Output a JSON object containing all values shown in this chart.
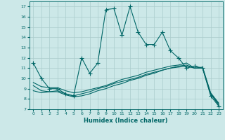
{
  "xlabel": "Humidex (Indice chaleur)",
  "bg_color": "#cce8e8",
  "line_color": "#006666",
  "grid_color": "#aacccc",
  "xlim": [
    -0.5,
    23.5
  ],
  "ylim": [
    7,
    17.5
  ],
  "yticks": [
    7,
    8,
    9,
    10,
    11,
    12,
    13,
    14,
    15,
    16,
    17
  ],
  "xticks": [
    0,
    1,
    2,
    3,
    4,
    5,
    6,
    7,
    8,
    9,
    10,
    11,
    12,
    13,
    14,
    15,
    16,
    17,
    18,
    19,
    20,
    21,
    22,
    23
  ],
  "series1_x": [
    0,
    1,
    2,
    3,
    4,
    5,
    6,
    7,
    8,
    9,
    10,
    11,
    12,
    13,
    14,
    15,
    16,
    17,
    18,
    19,
    20,
    21,
    22,
    23
  ],
  "series1_y": [
    11.5,
    10.0,
    9.0,
    9.0,
    8.5,
    8.3,
    12.0,
    10.5,
    11.5,
    16.7,
    16.8,
    14.2,
    17.0,
    14.5,
    13.3,
    13.3,
    14.5,
    12.7,
    12.0,
    11.0,
    11.2,
    11.0,
    8.3,
    7.3
  ],
  "series2_x": [
    0,
    1,
    2,
    3,
    4,
    5,
    6,
    7,
    8,
    9,
    10,
    11,
    12,
    13,
    14,
    15,
    16,
    17,
    18,
    19,
    20,
    21,
    22,
    23
  ],
  "series2_y": [
    9.3,
    8.8,
    8.7,
    8.8,
    8.5,
    8.3,
    8.5,
    8.7,
    9.0,
    9.2,
    9.5,
    9.7,
    9.9,
    10.1,
    10.4,
    10.6,
    10.8,
    11.0,
    11.2,
    11.3,
    11.0,
    11.0,
    8.5,
    7.5
  ],
  "series3_x": [
    0,
    1,
    2,
    3,
    4,
    5,
    6,
    7,
    8,
    9,
    10,
    11,
    12,
    13,
    14,
    15,
    16,
    17,
    18,
    19,
    20,
    21,
    22,
    23
  ],
  "series3_y": [
    9.6,
    9.2,
    9.1,
    9.1,
    8.8,
    8.6,
    8.7,
    8.9,
    9.1,
    9.3,
    9.6,
    9.9,
    10.1,
    10.3,
    10.6,
    10.8,
    11.0,
    11.2,
    11.3,
    11.5,
    11.0,
    11.1,
    8.6,
    7.6
  ],
  "series4_x": [
    0,
    1,
    2,
    3,
    4,
    5,
    6,
    7,
    8,
    9,
    10,
    11,
    12,
    13,
    14,
    15,
    16,
    17,
    18,
    19,
    20,
    21,
    22,
    23
  ],
  "series4_y": [
    8.8,
    8.6,
    8.7,
    8.7,
    8.4,
    8.2,
    8.3,
    8.5,
    8.8,
    9.0,
    9.3,
    9.5,
    9.8,
    10.0,
    10.3,
    10.5,
    10.8,
    11.0,
    11.1,
    11.2,
    11.0,
    11.0,
    8.5,
    7.4
  ],
  "markersize": 3,
  "linewidth": 0.8
}
